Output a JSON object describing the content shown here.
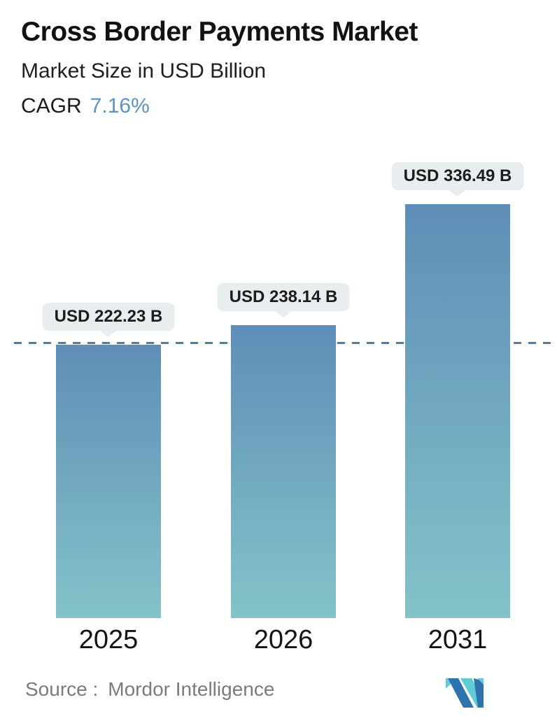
{
  "header": {
    "title": "Cross Border Payments Market",
    "subtitle": "Market Size in USD Billion",
    "cagr_label": "CAGR",
    "cagr_value": "7.16%"
  },
  "chart_data": {
    "type": "bar",
    "categories": [
      "2025",
      "2026",
      "2031"
    ],
    "values": [
      222.23,
      238.14,
      336.49
    ],
    "value_labels": [
      "USD 222.23 B",
      "USD 238.14 B",
      "USD 336.49 B"
    ],
    "title": "Cross Border Payments Market",
    "subtitle": "Market Size in USD Billion",
    "unit": "USD Billion",
    "cagr": "7.16%",
    "ylim": [
      0,
      350
    ],
    "grid": false,
    "legend_position": "none",
    "reference_line": {
      "value": 222.23,
      "style": "dashed",
      "note": "level of 2025 bar"
    }
  },
  "footer": {
    "source_label": "Source :",
    "source_value": "Mordor Intelligence",
    "logo": "mordor-intelligence-logo"
  },
  "colors": {
    "accent_blue": "#5b94bf",
    "dashed_line": "#4d7ea6",
    "bubble_bg": "#e8edef",
    "bar_gradient_top": "#5e8eb7",
    "bar_gradient_bottom": "#84c3c9",
    "title_text": "#121212",
    "source_gray": "#7b7b7b",
    "logo_blue": "#2e72ae",
    "logo_teal": "#5fcdd3"
  }
}
